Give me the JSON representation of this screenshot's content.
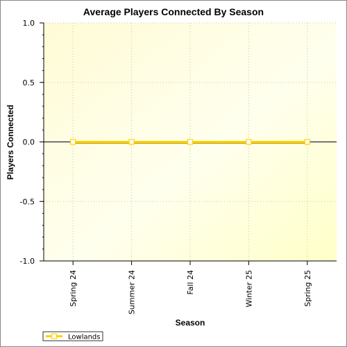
{
  "chart_data": {
    "type": "line",
    "title": "Average Players Connected By Season",
    "xlabel": "Season",
    "ylabel": "Players Connected",
    "categories": [
      "Spring 24",
      "Summer 24",
      "Fall 24",
      "Winter 25",
      "Spring 25"
    ],
    "series": [
      {
        "name": "Lowlands",
        "values": [
          0,
          0,
          0,
          0,
          0
        ],
        "color": "#ffd200"
      }
    ],
    "ylim": [
      -1.0,
      1.0
    ],
    "yticks": [
      "1.0",
      "0.5",
      "0.0",
      "-0.5",
      "-1.0"
    ],
    "grid": true,
    "legend": "bottom-left",
    "plot_background": "#fffde0"
  }
}
